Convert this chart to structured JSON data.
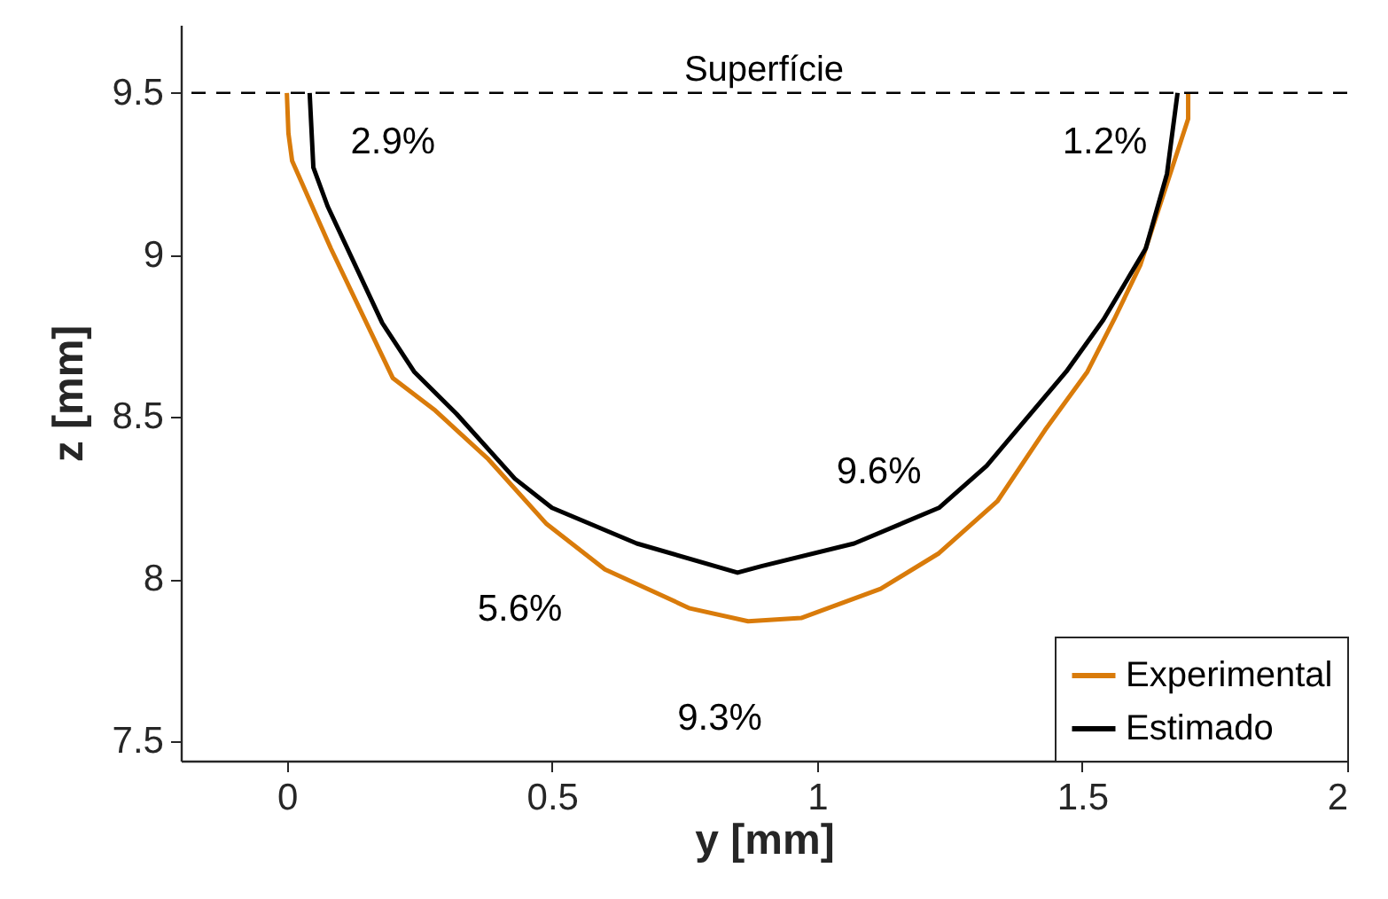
{
  "chart_data": {
    "type": "line",
    "xlabel": "y [mm]",
    "ylabel": "z [mm]",
    "xlim": [
      -0.2,
      2
    ],
    "ylim": [
      7.44,
      9.71
    ],
    "xticks": [
      0,
      0.5,
      1,
      1.5,
      2
    ],
    "yticks": [
      7.5,
      8,
      8.5,
      9,
      9.5
    ],
    "grid": false,
    "legend": "bottom right",
    "marker": "none",
    "line_style": "solid",
    "series": [
      {
        "name": "Experimental",
        "color": "#d97b0a",
        "x": [
          0,
          0.003,
          0.01,
          0.083,
          0.2,
          0.28,
          0.38,
          0.49,
          0.6,
          0.76,
          0.87,
          0.97,
          1.12,
          1.23,
          1.34,
          1.43,
          1.51,
          1.56,
          1.61,
          1.66,
          1.7,
          1.7
        ],
        "values": [
          9.5,
          9.375,
          9.29,
          9.02,
          8.62,
          8.52,
          8.37,
          8.17,
          8.03,
          7.91,
          7.87,
          7.88,
          7.97,
          8.08,
          8.24,
          8.46,
          8.64,
          8.8,
          8.97,
          9.22,
          9.42,
          9.5
        ]
      },
      {
        "name": "Estimado",
        "color": "#000000",
        "x": [
          0.043,
          0.05,
          0.077,
          0.18,
          0.24,
          0.32,
          0.43,
          0.5,
          0.66,
          0.85,
          0.895,
          1.07,
          1.23,
          1.32,
          1.47,
          1.54,
          1.62,
          1.66,
          1.68
        ],
        "values": [
          9.5,
          9.27,
          9.15,
          8.79,
          8.64,
          8.51,
          8.31,
          8.22,
          8.11,
          8.02,
          8.04,
          8.11,
          8.22,
          8.35,
          8.64,
          8.8,
          9.02,
          9.25,
          9.5
        ]
      }
    ],
    "ref_lines": [
      {
        "axis": "y",
        "value": 9.5,
        "label": "Superfície",
        "line_style": "dashed",
        "color": "#000000"
      }
    ],
    "annotations": [
      {
        "text": "2.9%",
        "x": 0.043,
        "y": 9.5
      },
      {
        "text": "1.2%",
        "x": 1.68,
        "y": 9.5
      },
      {
        "text": "5.6%",
        "x": 0.6,
        "y": 8.03
      },
      {
        "text": "9.3%",
        "x": 0.87,
        "y": 7.87
      },
      {
        "text": "9.6%",
        "x": 1.07,
        "y": 8.11
      }
    ]
  }
}
